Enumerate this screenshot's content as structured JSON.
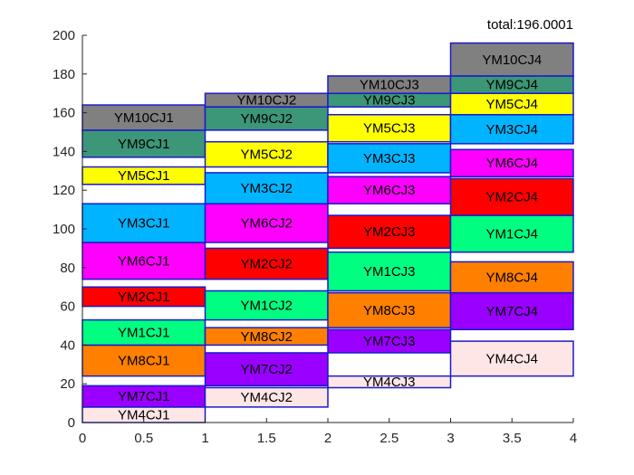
{
  "chart_data": {
    "type": "bar",
    "annotation": "total:196.0001",
    "xlim": [
      0,
      4
    ],
    "ylim": [
      0,
      200
    ],
    "x_ticks": [
      0,
      0.5,
      1,
      1.5,
      2,
      2.5,
      3,
      3.5,
      4
    ],
    "x_tick_labels": [
      "0",
      "0.5",
      "1",
      "1.5",
      "2",
      "2.5",
      "3",
      "3.5",
      "4"
    ],
    "y_ticks": [
      0,
      20,
      40,
      60,
      80,
      100,
      120,
      140,
      160,
      180,
      200
    ],
    "y_tick_labels": [
      "0",
      "20",
      "40",
      "60",
      "80",
      "100",
      "120",
      "140",
      "160",
      "180",
      "200"
    ],
    "grid": false,
    "colors": {
      "YM1": "#00ff80",
      "YM2": "#ff0000",
      "YM3": "#00b4ff",
      "YM4": "#ffe6e6",
      "YM5": "#ffff00",
      "YM6": "#ff00ff",
      "YM7": "#9900ff",
      "YM8": "#ff8000",
      "YM9": "#3c9678",
      "YM10": "#808080",
      "border": "#1a1acc"
    },
    "boxes": [
      {
        "label": "YM4CJ1",
        "x0": 0,
        "x1": 1,
        "y0": 0,
        "y1": 8,
        "color": "YM4"
      },
      {
        "label": "YM7CJ1",
        "x0": 0,
        "x1": 1,
        "y0": 8,
        "y1": 19,
        "color": "YM7"
      },
      {
        "label": "YM8CJ1",
        "x0": 0,
        "x1": 1,
        "y0": 24,
        "y1": 40,
        "color": "YM8"
      },
      {
        "label": "YM1CJ1",
        "x0": 0,
        "x1": 1,
        "y0": 40,
        "y1": 53,
        "color": "YM1"
      },
      {
        "label": "YM2CJ1",
        "x0": 0,
        "x1": 1,
        "y0": 60,
        "y1": 70,
        "color": "YM2"
      },
      {
        "label": "YM6CJ1",
        "x0": 0,
        "x1": 1,
        "y0": 74,
        "y1": 93,
        "color": "YM6"
      },
      {
        "label": "YM3CJ1",
        "x0": 0,
        "x1": 1,
        "y0": 93,
        "y1": 113,
        "color": "YM3"
      },
      {
        "label": "YM5CJ1",
        "x0": 0,
        "x1": 1,
        "y0": 123,
        "y1": 132,
        "color": "YM5"
      },
      {
        "label": "YM9CJ1",
        "x0": 0,
        "x1": 1,
        "y0": 137,
        "y1": 151,
        "color": "YM9"
      },
      {
        "label": "YM10CJ1",
        "x0": 0,
        "x1": 1,
        "y0": 151,
        "y1": 164,
        "color": "YM10"
      },
      {
        "label": "YM4CJ2",
        "x0": 1,
        "x1": 2,
        "y0": 8,
        "y1": 18,
        "color": "YM4"
      },
      {
        "label": "YM7CJ2",
        "x0": 1,
        "x1": 2,
        "y0": 19,
        "y1": 36,
        "color": "YM7"
      },
      {
        "label": "YM8CJ2",
        "x0": 1,
        "x1": 2,
        "y0": 40,
        "y1": 49,
        "color": "YM8"
      },
      {
        "label": "YM1CJ2",
        "x0": 1,
        "x1": 2,
        "y0": 53,
        "y1": 68,
        "color": "YM1"
      },
      {
        "label": "YM2CJ2",
        "x0": 1,
        "x1": 2,
        "y0": 74,
        "y1": 90,
        "color": "YM2"
      },
      {
        "label": "YM6CJ2",
        "x0": 1,
        "x1": 2,
        "y0": 93,
        "y1": 113,
        "color": "YM6"
      },
      {
        "label": "YM3CJ2",
        "x0": 1,
        "x1": 2,
        "y0": 113,
        "y1": 129,
        "color": "YM3"
      },
      {
        "label": "YM5CJ2",
        "x0": 1,
        "x1": 2,
        "y0": 132,
        "y1": 145,
        "color": "YM5"
      },
      {
        "label": "YM9CJ2",
        "x0": 1,
        "x1": 2,
        "y0": 151,
        "y1": 163,
        "color": "YM9"
      },
      {
        "label": "YM10CJ2",
        "x0": 1,
        "x1": 2,
        "y0": 163,
        "y1": 170,
        "color": "YM10"
      },
      {
        "label": "YM4CJ3",
        "x0": 2,
        "x1": 3,
        "y0": 18,
        "y1": 24,
        "color": "YM4"
      },
      {
        "label": "YM7CJ3",
        "x0": 2,
        "x1": 3,
        "y0": 36,
        "y1": 48,
        "color": "YM7"
      },
      {
        "label": "YM8CJ3",
        "x0": 2,
        "x1": 3,
        "y0": 49,
        "y1": 67,
        "color": "YM8"
      },
      {
        "label": "YM1CJ3",
        "x0": 2,
        "x1": 3,
        "y0": 68,
        "y1": 88,
        "color": "YM1"
      },
      {
        "label": "YM2CJ3",
        "x0": 2,
        "x1": 3,
        "y0": 90,
        "y1": 107,
        "color": "YM2"
      },
      {
        "label": "YM6CJ3",
        "x0": 2,
        "x1": 3,
        "y0": 113,
        "y1": 127,
        "color": "YM6"
      },
      {
        "label": "YM3CJ3",
        "x0": 2,
        "x1": 3,
        "y0": 129,
        "y1": 144,
        "color": "YM3"
      },
      {
        "label": "YM5CJ3",
        "x0": 2,
        "x1": 3,
        "y0": 145,
        "y1": 159,
        "color": "YM5"
      },
      {
        "label": "YM9CJ3",
        "x0": 2,
        "x1": 3,
        "y0": 163,
        "y1": 170,
        "color": "YM9"
      },
      {
        "label": "YM10CJ3",
        "x0": 2,
        "x1": 3,
        "y0": 170,
        "y1": 179,
        "color": "YM10"
      },
      {
        "label": "YM4CJ4",
        "x0": 3,
        "x1": 4,
        "y0": 24,
        "y1": 42,
        "color": "YM4"
      },
      {
        "label": "YM7CJ4",
        "x0": 3,
        "x1": 4,
        "y0": 48,
        "y1": 67,
        "color": "YM7"
      },
      {
        "label": "YM8CJ4",
        "x0": 3,
        "x1": 4,
        "y0": 67,
        "y1": 83,
        "color": "YM8"
      },
      {
        "label": "YM1CJ4",
        "x0": 3,
        "x1": 4,
        "y0": 88,
        "y1": 107,
        "color": "YM1"
      },
      {
        "label": "YM2CJ4",
        "x0": 3,
        "x1": 4,
        "y0": 107,
        "y1": 126,
        "color": "YM2"
      },
      {
        "label": "YM6CJ4",
        "x0": 3,
        "x1": 4,
        "y0": 127,
        "y1": 141,
        "color": "YM6"
      },
      {
        "label": "YM3CJ4",
        "x0": 3,
        "x1": 4,
        "y0": 144,
        "y1": 159,
        "color": "YM3"
      },
      {
        "label": "YM5CJ4",
        "x0": 3,
        "x1": 4,
        "y0": 159,
        "y1": 170,
        "color": "YM5"
      },
      {
        "label": "YM9CJ4",
        "x0": 3,
        "x1": 4,
        "y0": 170,
        "y1": 179,
        "color": "YM9"
      },
      {
        "label": "YM10CJ4",
        "x0": 3,
        "x1": 4,
        "y0": 179,
        "y1": 196,
        "color": "YM10"
      }
    ]
  }
}
